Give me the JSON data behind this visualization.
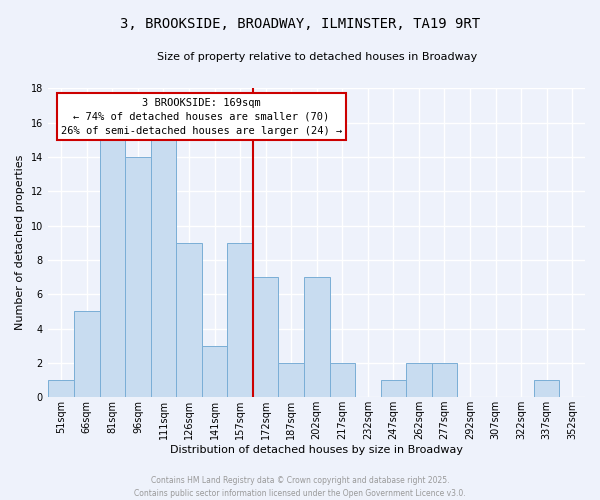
{
  "title": "3, BROOKSIDE, BROADWAY, ILMINSTER, TA19 9RT",
  "subtitle": "Size of property relative to detached houses in Broadway",
  "xlabel": "Distribution of detached houses by size in Broadway",
  "ylabel": "Number of detached properties",
  "bar_color": "#c8dcf0",
  "bar_edge_color": "#7aaed6",
  "background_color": "#eef2fb",
  "grid_color": "#ffffff",
  "bins": [
    "51sqm",
    "66sqm",
    "81sqm",
    "96sqm",
    "111sqm",
    "126sqm",
    "141sqm",
    "157sqm",
    "172sqm",
    "187sqm",
    "202sqm",
    "217sqm",
    "232sqm",
    "247sqm",
    "262sqm",
    "277sqm",
    "292sqm",
    "307sqm",
    "322sqm",
    "337sqm",
    "352sqm"
  ],
  "values": [
    1,
    5,
    15,
    14,
    15,
    9,
    3,
    9,
    7,
    2,
    7,
    2,
    0,
    1,
    2,
    2,
    0,
    0,
    0,
    1,
    0
  ],
  "ylim": [
    0,
    18
  ],
  "yticks": [
    0,
    2,
    4,
    6,
    8,
    10,
    12,
    14,
    16,
    18
  ],
  "vline_x": 7.5,
  "vline_color": "#cc0000",
  "annotation_title": "3 BROOKSIDE: 169sqm",
  "annotation_line1": "← 74% of detached houses are smaller (70)",
  "annotation_line2": "26% of semi-detached houses are larger (24) →",
  "annotation_box_color": "#ffffff",
  "annotation_box_edge": "#cc0000",
  "footer_line1": "Contains HM Land Registry data © Crown copyright and database right 2025.",
  "footer_line2": "Contains public sector information licensed under the Open Government Licence v3.0.",
  "footer_color": "#999999",
  "title_fontsize": 10,
  "subtitle_fontsize": 8,
  "ylabel_fontsize": 8,
  "xlabel_fontsize": 8,
  "tick_fontsize": 7,
  "annotation_fontsize": 7.5,
  "footer_fontsize": 5.5
}
